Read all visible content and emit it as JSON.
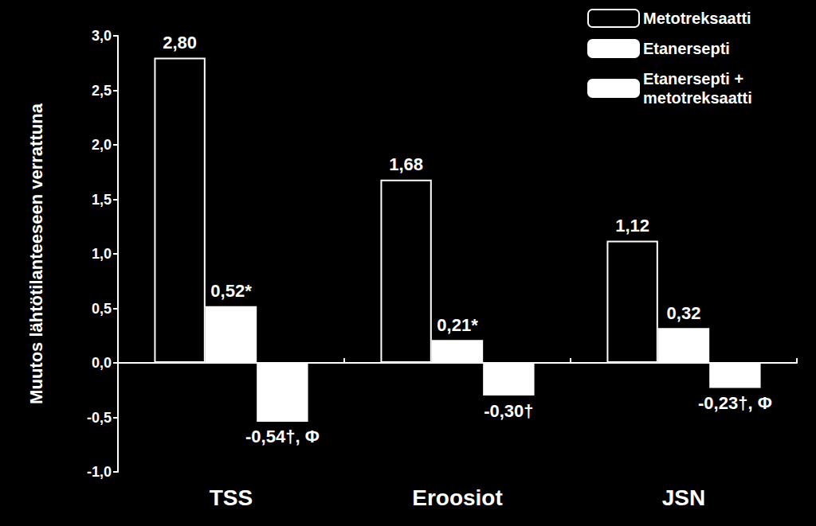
{
  "chart_data": {
    "type": "bar",
    "y_label": "Muutos lähtötilanteeseen verrattuna",
    "categories": [
      "TSS",
      "Eroosiot",
      "JSN"
    ],
    "series": [
      {
        "name": "Metotreksaatti",
        "color": "#000000",
        "values": [
          2.8,
          1.68,
          1.12
        ],
        "value_labels": [
          "2,80",
          "1,68",
          "1,12"
        ]
      },
      {
        "name": "Etanersepti",
        "color": "#ffffff",
        "values": [
          0.52,
          0.21,
          0.32
        ],
        "value_labels": [
          "0,52*",
          "0,21*",
          "0,32"
        ]
      },
      {
        "name": "Etanersepti + metotreksaatti",
        "color": "#ffffff",
        "values": [
          -0.54,
          -0.3,
          -0.23
        ],
        "value_labels": [
          "-0,54†, Φ",
          "-0,30†",
          "-0,23†, Φ"
        ]
      }
    ],
    "ylim": [
      -1.0,
      3.0
    ],
    "yticks": [
      {
        "value": -1.0,
        "label": "-1,0"
      },
      {
        "value": -0.5,
        "label": "-0,5"
      },
      {
        "value": 0.0,
        "label": "0,0"
      },
      {
        "value": 0.5,
        "label": "0,5"
      },
      {
        "value": 1.0,
        "label": "1,0"
      },
      {
        "value": 1.5,
        "label": "1,5"
      },
      {
        "value": 2.0,
        "label": "2,0"
      },
      {
        "value": 2.5,
        "label": "2,5"
      },
      {
        "value": 3.0,
        "label": "3,0"
      }
    ],
    "grid": false,
    "legend": "upper right",
    "data_labels": true
  }
}
